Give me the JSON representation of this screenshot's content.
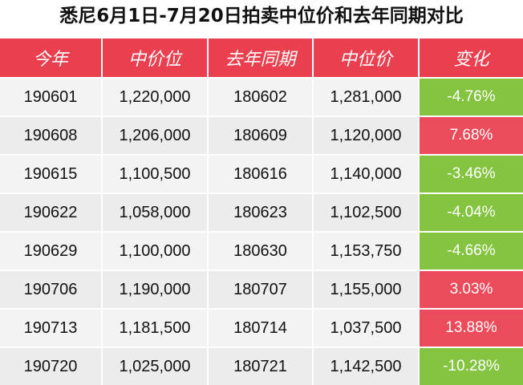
{
  "title": "悉尼6月1日-7月20日拍卖中位价和去年同期对比",
  "colors": {
    "header_bg": "#ea3f4f",
    "decrease_bg": "#84c441",
    "increase_bg": "#eb4b5a"
  },
  "headers": [
    "今年",
    "中价位",
    "去年同期",
    "中位价",
    "变化"
  ],
  "rows": [
    {
      "this_year": "190601",
      "this_median": "1,220,000",
      "last_year": "180602",
      "last_median": "1,281,000",
      "change": "-4.76%",
      "direction": "down"
    },
    {
      "this_year": "190608",
      "this_median": "1,206,000",
      "last_year": "180609",
      "last_median": "1,120,000",
      "change": "7.68%",
      "direction": "up"
    },
    {
      "this_year": "190615",
      "this_median": "1,100,500",
      "last_year": "180616",
      "last_median": "1,140,000",
      "change": "-3.46%",
      "direction": "down"
    },
    {
      "this_year": "190622",
      "this_median": "1,058,000",
      "last_year": "180623",
      "last_median": "1,102,500",
      "change": "-4.04%",
      "direction": "down"
    },
    {
      "this_year": "190629",
      "this_median": "1,100,000",
      "last_year": "180630",
      "last_median": "1,153,750",
      "change": "-4.66%",
      "direction": "down"
    },
    {
      "this_year": "190706",
      "this_median": "1,190,000",
      "last_year": "180707",
      "last_median": "1,155,000",
      "change": "3.03%",
      "direction": "up"
    },
    {
      "this_year": "190713",
      "this_median": "1,181,500",
      "last_year": "180714",
      "last_median": "1,037,500",
      "change": "13.88%",
      "direction": "up"
    },
    {
      "this_year": "190720",
      "this_median": "1,025,000",
      "last_year": "180721",
      "last_median": "1,142,500",
      "change": "-10.28%",
      "direction": "down"
    }
  ]
}
